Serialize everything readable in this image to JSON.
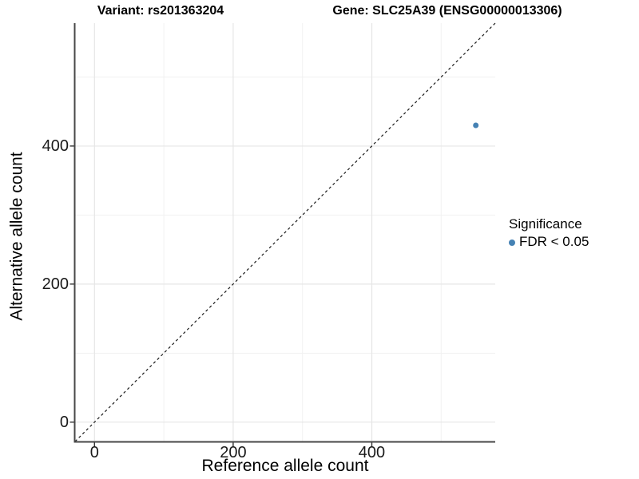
{
  "header": {
    "variant_title": "Variant: rs201363204",
    "gene_title": "Gene: SLC25A39 (ENSG00000013306)"
  },
  "legend": {
    "title": "Significance",
    "items": [
      {
        "label": "FDR < 0.05",
        "color": "#4682B4",
        "marker": "circle"
      }
    ]
  },
  "colors": {
    "point": "#4682B4",
    "axis_line": "#474747",
    "tick_mark": "#333333",
    "grid_major": "#e6e6e6",
    "grid_minor": "#f1f1f1",
    "identity_line": "#1a1a1a",
    "background": "#ffffff"
  },
  "chart_data": {
    "type": "scatter",
    "title": "Variant: rs201363204 | Gene: SLC25A39 (ENSG00000013306)",
    "xlabel": "Reference allele count",
    "ylabel": "Alternative allele count",
    "xlim": [
      -28,
      578
    ],
    "ylim": [
      -28,
      578
    ],
    "x_ticks": [
      0,
      200,
      400
    ],
    "y_ticks": [
      0,
      200,
      400
    ],
    "x_minor_ticks": [
      100,
      300,
      500
    ],
    "y_minor_ticks": [
      100,
      300,
      500
    ],
    "grid": true,
    "legend_position": "right",
    "series": [
      {
        "name": "FDR < 0.05",
        "color": "#4682B4",
        "points": [
          [
            550,
            430
          ]
        ]
      }
    ],
    "reference_line": {
      "type": "identity",
      "slope": 1,
      "intercept": 0,
      "style": "dashed"
    }
  }
}
